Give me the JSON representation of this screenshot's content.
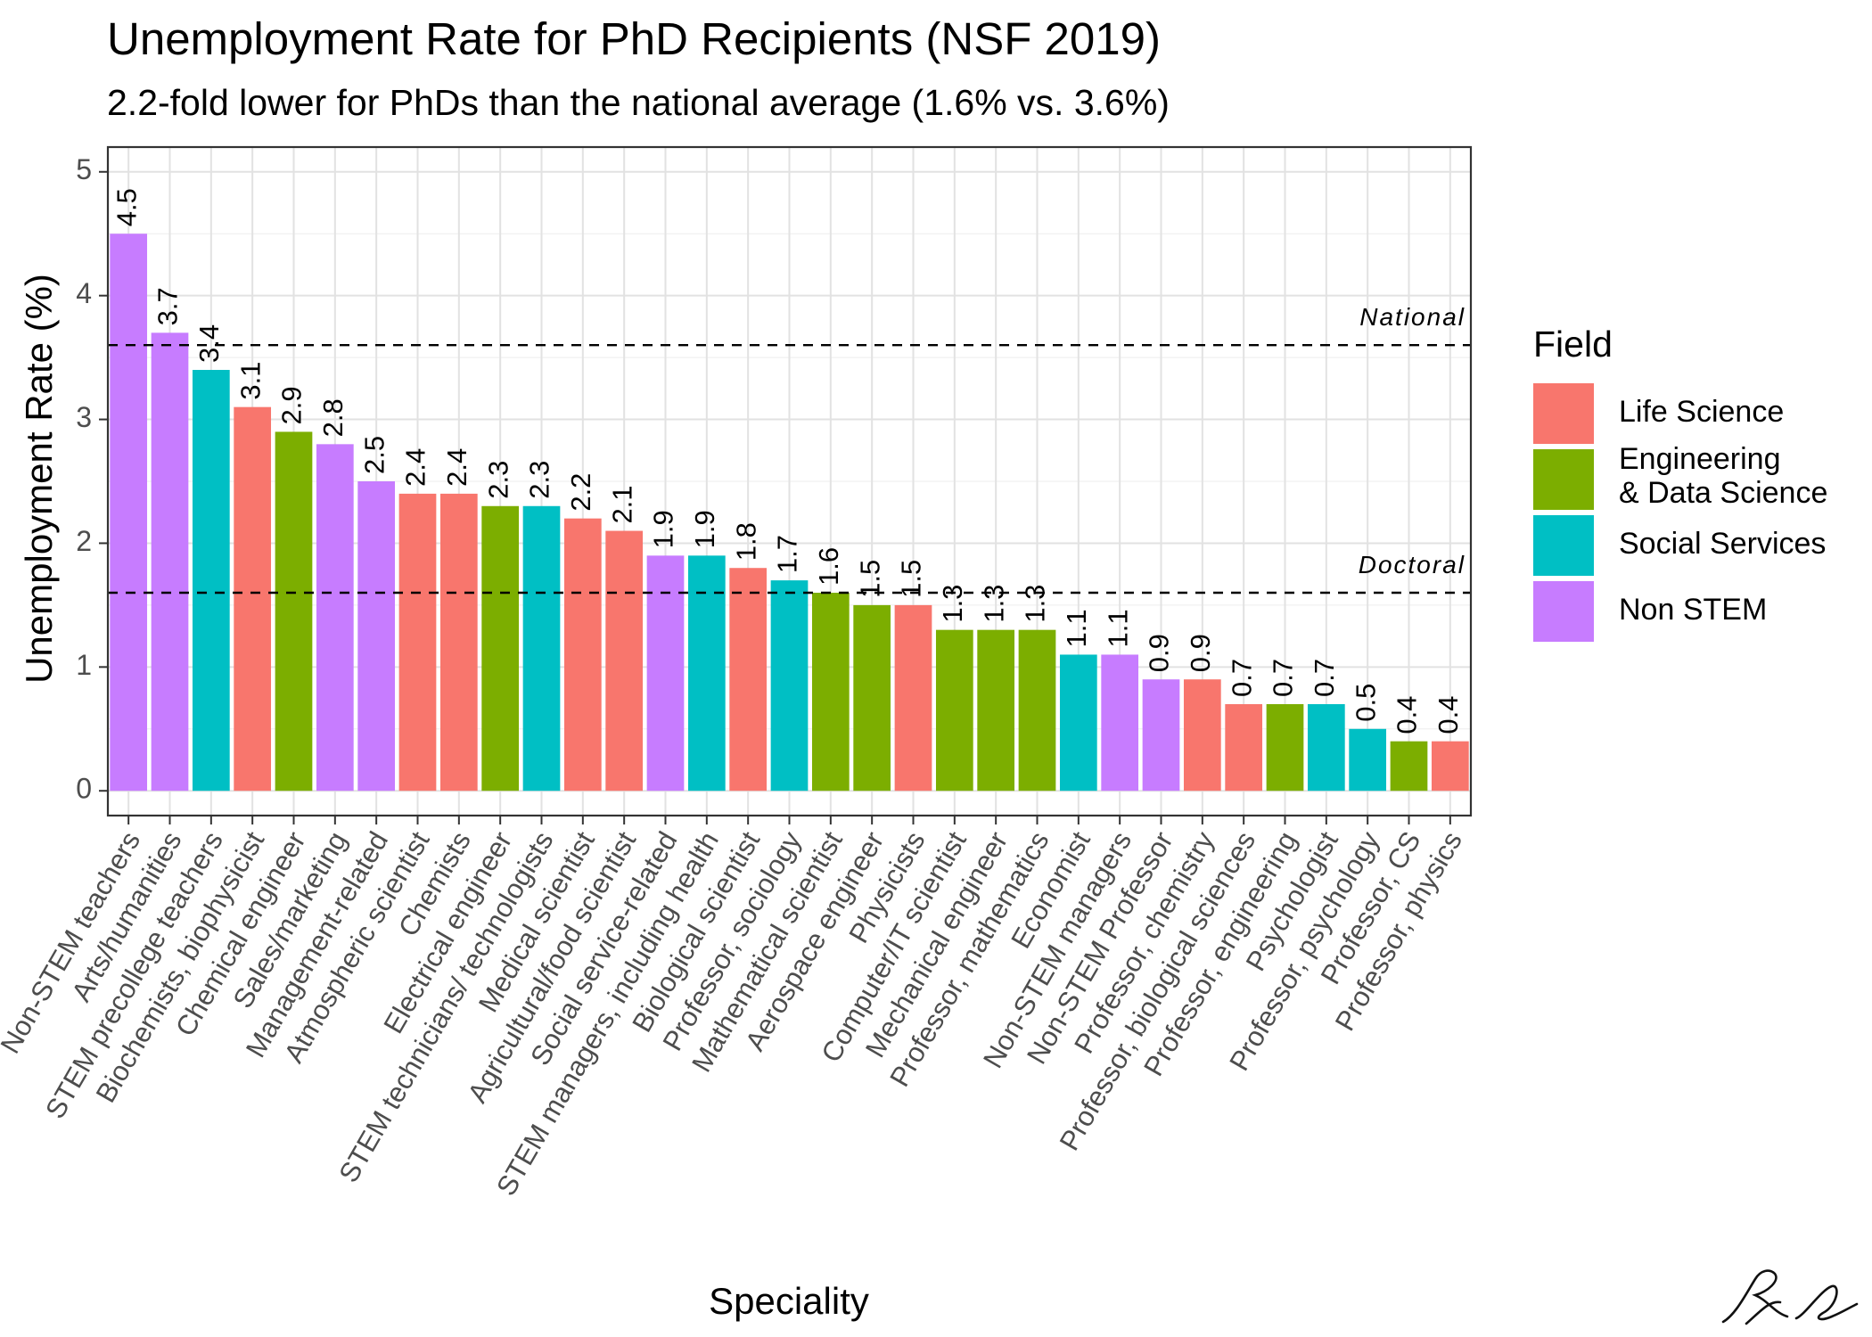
{
  "chart_data": {
    "type": "bar",
    "title": "Unemployment Rate for PhD Recipients (NSF 2019)",
    "subtitle": "2.2-fold lower for PhDs than the national average (1.6% vs. 3.6%)",
    "xlabel": "Speciality",
    "ylabel": "Unemployment Rate (%)",
    "ylim": [
      -0.2,
      5.2
    ],
    "yticks": [
      0,
      1,
      2,
      3,
      4,
      5
    ],
    "grid": true,
    "legend": {
      "title": "Field",
      "position": "right",
      "entries": [
        {
          "name": "Life Science",
          "color": "#F8766D"
        },
        {
          "name": "Engineering & Data Science",
          "line1": "Engineering",
          "line2": "& Data Science",
          "color": "#7CAE00"
        },
        {
          "name": "Social Services",
          "color": "#00BFC4"
        },
        {
          "name": "Non STEM",
          "color": "#C77CFF"
        }
      ]
    },
    "reference_lines": [
      {
        "label": "National",
        "value": 3.6
      },
      {
        "label": "Doctoral",
        "value": 1.6
      }
    ],
    "categories": [
      "Non-STEM teachers",
      "Arts/humanities",
      "STEM precollege teachers",
      "Biochemists, biophysicist",
      "Chemical engineer",
      "Sales/marketing",
      "Management-related",
      "Atmospheric scientist",
      "Chemists",
      "Electrical engineer",
      "STEM technicians/ technologists",
      "Medical scientist",
      "Agricultural/food scientist",
      "Social service-related",
      "STEM managers, including health",
      "Biological scientist",
      "Professor, sociology",
      "Mathematical scientist",
      "Aerospace engineer",
      "Physicists",
      "Computer/IT scientist",
      "Mechanical engineer",
      "Professor, mathematics",
      "Economist",
      "Non-STEM managers",
      "Non-STEM Professor",
      "Professor, chemistry",
      "Professor, biological sciences",
      "Professor, engineering",
      "Psychologist",
      "Professor, psychology",
      "Professor, CS",
      "Professor, physics"
    ],
    "values": [
      4.5,
      3.7,
      3.4,
      3.1,
      2.9,
      2.8,
      2.5,
      2.4,
      2.4,
      2.3,
      2.3,
      2.2,
      2.1,
      1.9,
      1.9,
      1.8,
      1.7,
      1.6,
      1.5,
      1.5,
      1.3,
      1.3,
      1.3,
      1.1,
      1.1,
      0.9,
      0.9,
      0.7,
      0.7,
      0.7,
      0.5,
      0.4,
      0.4
    ],
    "fields": [
      "Non STEM",
      "Non STEM",
      "Social Services",
      "Life Science",
      "Engineering & Data Science",
      "Non STEM",
      "Non STEM",
      "Life Science",
      "Life Science",
      "Engineering & Data Science",
      "Social Services",
      "Life Science",
      "Life Science",
      "Non STEM",
      "Social Services",
      "Life Science",
      "Social Services",
      "Engineering & Data Science",
      "Engineering & Data Science",
      "Life Science",
      "Engineering & Data Science",
      "Engineering & Data Science",
      "Engineering & Data Science",
      "Social Services",
      "Non STEM",
      "Non STEM",
      "Life Science",
      "Life Science",
      "Engineering & Data Science",
      "Social Services",
      "Social Services",
      "Engineering & Data Science",
      "Life Science"
    ]
  }
}
